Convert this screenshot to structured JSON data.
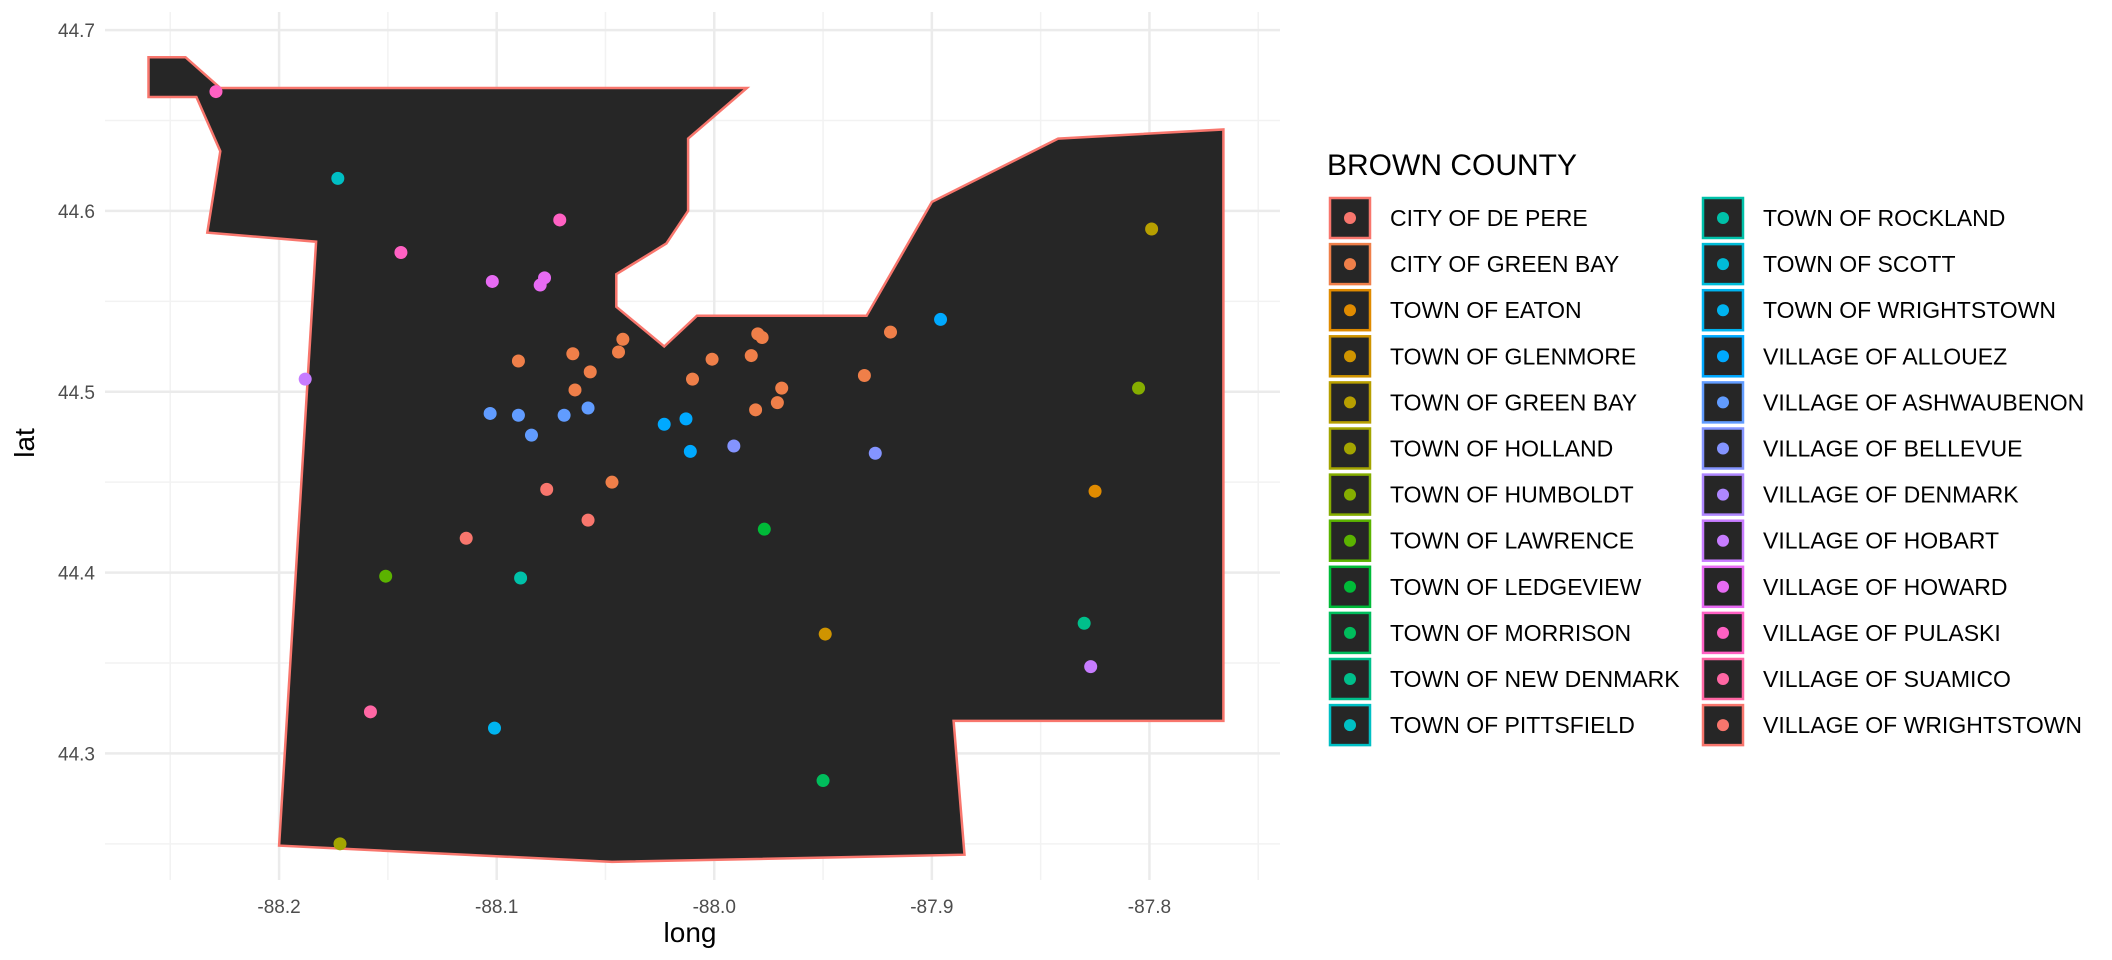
{
  "chart_data": {
    "type": "scatter",
    "xlabel": "long",
    "ylabel": "lat",
    "xlim": [
      -88.28,
      -87.74
    ],
    "ylim": [
      44.23,
      44.71
    ],
    "x_ticks": [
      -88.2,
      -88.1,
      -88.0,
      -87.9,
      -87.8
    ],
    "x_tick_labels": [
      "-88.2",
      "-88.1",
      "-88.0",
      "-87.9",
      "-87.8"
    ],
    "y_ticks": [
      44.3,
      44.4,
      44.5,
      44.6,
      44.7
    ],
    "y_tick_labels": [
      "44.3",
      "44.4",
      "44.5",
      "44.6",
      "44.7"
    ],
    "grid": true,
    "legend_title": "BROWN COUNTY",
    "legend_placement": "right",
    "polygon": {
      "fill": "#262626",
      "stroke": "#f8766d",
      "coords": [
        [
          -88.26,
          44.685
        ],
        [
          -88.243,
          44.685
        ],
        [
          -88.227,
          44.668
        ],
        [
          -87.985,
          44.668
        ],
        [
          -88.012,
          44.64
        ],
        [
          -88.012,
          44.6
        ],
        [
          -88.022,
          44.582
        ],
        [
          -88.045,
          44.565
        ],
        [
          -88.045,
          44.547
        ],
        [
          -88.023,
          44.525
        ],
        [
          -88.008,
          44.542
        ],
        [
          -87.93,
          44.542
        ],
        [
          -87.9,
          44.605
        ],
        [
          -87.842,
          44.64
        ],
        [
          -87.766,
          44.645
        ],
        [
          -87.766,
          44.318
        ],
        [
          -87.89,
          44.318
        ],
        [
          -87.885,
          44.244
        ],
        [
          -88.047,
          44.24
        ],
        [
          -88.2,
          44.249
        ],
        [
          -88.183,
          44.583
        ],
        [
          -88.233,
          44.588
        ],
        [
          -88.227,
          44.633
        ],
        [
          -88.238,
          44.663
        ],
        [
          -88.26,
          44.663
        ]
      ]
    },
    "series": [
      {
        "name": "CITY OF DE PERE",
        "color": "#F8766D",
        "points": [
          [
            -88.114,
            44.419
          ],
          [
            -88.077,
            44.446
          ],
          [
            -88.058,
            44.429
          ]
        ]
      },
      {
        "name": "CITY OF GREEN BAY",
        "color": "#EF7F49",
        "points": [
          [
            -88.09,
            44.517
          ],
          [
            -88.065,
            44.521
          ],
          [
            -88.057,
            44.511
          ],
          [
            -88.064,
            44.501
          ],
          [
            -88.044,
            44.522
          ],
          [
            -88.042,
            44.529
          ],
          [
            -88.047,
            44.45
          ],
          [
            -88.01,
            44.507
          ],
          [
            -88.001,
            44.518
          ],
          [
            -87.983,
            44.52
          ],
          [
            -87.98,
            44.532
          ],
          [
            -87.978,
            44.53
          ],
          [
            -87.981,
            44.49
          ],
          [
            -87.971,
            44.494
          ],
          [
            -87.969,
            44.502
          ],
          [
            -87.931,
            44.509
          ],
          [
            -87.919,
            44.533
          ]
        ]
      },
      {
        "name": "TOWN OF EATON",
        "color": "#E08B00",
        "points": [
          [
            -87.825,
            44.445
          ]
        ]
      },
      {
        "name": "TOWN OF GLENMORE",
        "color": "#CF9400",
        "points": [
          [
            -87.949,
            44.366
          ]
        ]
      },
      {
        "name": "TOWN OF GREEN BAY",
        "color": "#B79F00",
        "points": [
          [
            -87.799,
            44.59
          ]
        ]
      },
      {
        "name": "TOWN OF HOLLAND",
        "color": "#A3A500",
        "points": [
          [
            -88.172,
            44.25
          ]
        ]
      },
      {
        "name": "TOWN OF HUMBOLDT",
        "color": "#85AD00",
        "points": [
          [
            -87.805,
            44.502
          ]
        ]
      },
      {
        "name": "TOWN OF LAWRENCE",
        "color": "#5BB300",
        "points": [
          [
            -88.151,
            44.398
          ]
        ]
      },
      {
        "name": "TOWN OF LEDGEVIEW",
        "color": "#00BA38",
        "points": [
          [
            -87.977,
            44.424
          ]
        ]
      },
      {
        "name": "TOWN OF MORRISON",
        "color": "#00BD5C",
        "points": [
          [
            -87.95,
            44.285
          ]
        ]
      },
      {
        "name": "TOWN OF NEW DENMARK",
        "color": "#00C08B",
        "points": [
          [
            -87.83,
            44.372
          ]
        ]
      },
      {
        "name": "TOWN OF PITTSFIELD",
        "color": "#00BFC4",
        "points": [
          [
            -88.173,
            44.618
          ]
        ]
      },
      {
        "name": "TOWN OF ROCKLAND",
        "color": "#00C1A9",
        "points": [
          [
            -88.089,
            44.397
          ]
        ]
      },
      {
        "name": "TOWN OF SCOTT",
        "color": "#00BCD8",
        "points": []
      },
      {
        "name": "TOWN OF WRIGHTSTOWN",
        "color": "#00B4F0",
        "points": [
          [
            -88.101,
            44.314
          ]
        ]
      },
      {
        "name": "VILLAGE OF ALLOUEZ",
        "color": "#00A9FF",
        "points": [
          [
            -87.896,
            44.54
          ],
          [
            -88.023,
            44.482
          ],
          [
            -88.013,
            44.485
          ],
          [
            -88.011,
            44.467
          ]
        ]
      },
      {
        "name": "VILLAGE OF ASHWAUBENON",
        "color": "#619CFF",
        "points": [
          [
            -88.103,
            44.488
          ],
          [
            -88.09,
            44.487
          ],
          [
            -88.084,
            44.476
          ],
          [
            -88.069,
            44.487
          ],
          [
            -88.058,
            44.491
          ]
        ]
      },
      {
        "name": "VILLAGE OF BELLEVUE",
        "color": "#8494FF",
        "points": [
          [
            -87.991,
            44.47
          ],
          [
            -87.926,
            44.466
          ]
        ]
      },
      {
        "name": "VILLAGE OF DENMARK",
        "color": "#AE87FF",
        "points": []
      },
      {
        "name": "VILLAGE OF HOBART",
        "color": "#C77CFF",
        "points": [
          [
            -88.188,
            44.507
          ],
          [
            -87.827,
            44.348
          ]
        ]
      },
      {
        "name": "VILLAGE OF HOWARD",
        "color": "#E76BF3",
        "points": [
          [
            -88.102,
            44.561
          ],
          [
            -88.08,
            44.559
          ],
          [
            -88.078,
            44.563
          ]
        ]
      },
      {
        "name": "VILLAGE OF PULASKI",
        "color": "#FF61C3",
        "points": [
          [
            -88.229,
            44.666
          ],
          [
            -88.144,
            44.577
          ],
          [
            -88.071,
            44.595
          ]
        ]
      },
      {
        "name": "VILLAGE OF SUAMICO",
        "color": "#FF67A4",
        "points": [
          [
            -88.158,
            44.323
          ]
        ]
      },
      {
        "name": "VILLAGE OF WRIGHTSTOWN",
        "color": "#F8766D",
        "points": []
      }
    ]
  }
}
